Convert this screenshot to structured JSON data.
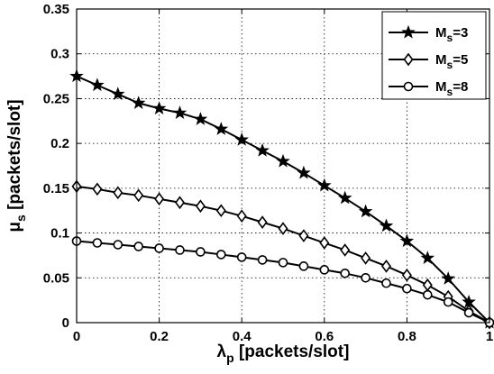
{
  "chart_data": {
    "type": "line",
    "xlabel": {
      "main": "λ",
      "sub": "p",
      "rest": " [packets/slot]"
    },
    "ylabel": {
      "main": "μ",
      "sub": "s",
      "rest": " [packets/slot]"
    },
    "xlim": [
      0,
      1
    ],
    "ylim": [
      0,
      0.35
    ],
    "xticks": [
      0,
      0.2,
      0.4,
      0.6,
      0.8,
      1
    ],
    "xtick_labels": [
      "0",
      "0.2",
      "0.4",
      "0.6",
      "0.8",
      "1"
    ],
    "yticks": [
      0,
      0.05,
      0.1,
      0.15,
      0.2,
      0.25,
      0.3,
      0.35
    ],
    "ytick_labels": [
      "0",
      "0.05",
      "0.1",
      "0.15",
      "0.2",
      "0.25",
      "0.3",
      "0.35"
    ],
    "grid": true,
    "legend_position": "top-right",
    "x": [
      0,
      0.05,
      0.1,
      0.15,
      0.2,
      0.25,
      0.3,
      0.35,
      0.4,
      0.45,
      0.5,
      0.55,
      0.6,
      0.65,
      0.7,
      0.75,
      0.8,
      0.85,
      0.9,
      0.95,
      1
    ],
    "series": [
      {
        "name": "Ms=3",
        "legend": {
          "main": "M",
          "sub": "s",
          "rest": "=3"
        },
        "marker": "star",
        "values": [
          0.275,
          0.265,
          0.255,
          0.245,
          0.239,
          0.234,
          0.227,
          0.216,
          0.204,
          0.192,
          0.18,
          0.167,
          0.153,
          0.139,
          0.124,
          0.108,
          0.091,
          0.072,
          0.049,
          0.023,
          0.0
        ]
      },
      {
        "name": "Ms=5",
        "legend": {
          "main": "M",
          "sub": "s",
          "rest": "=5"
        },
        "marker": "diamond",
        "values": [
          0.152,
          0.149,
          0.145,
          0.142,
          0.138,
          0.134,
          0.13,
          0.125,
          0.119,
          0.112,
          0.105,
          0.097,
          0.089,
          0.081,
          0.072,
          0.063,
          0.053,
          0.042,
          0.029,
          0.013,
          0.0
        ]
      },
      {
        "name": "Ms=8",
        "legend": {
          "main": "M",
          "sub": "s",
          "rest": "=8"
        },
        "marker": "circle",
        "values": [
          0.091,
          0.089,
          0.087,
          0.085,
          0.083,
          0.081,
          0.079,
          0.076,
          0.073,
          0.07,
          0.067,
          0.063,
          0.059,
          0.055,
          0.05,
          0.044,
          0.038,
          0.031,
          0.023,
          0.011,
          0.0
        ]
      }
    ]
  }
}
